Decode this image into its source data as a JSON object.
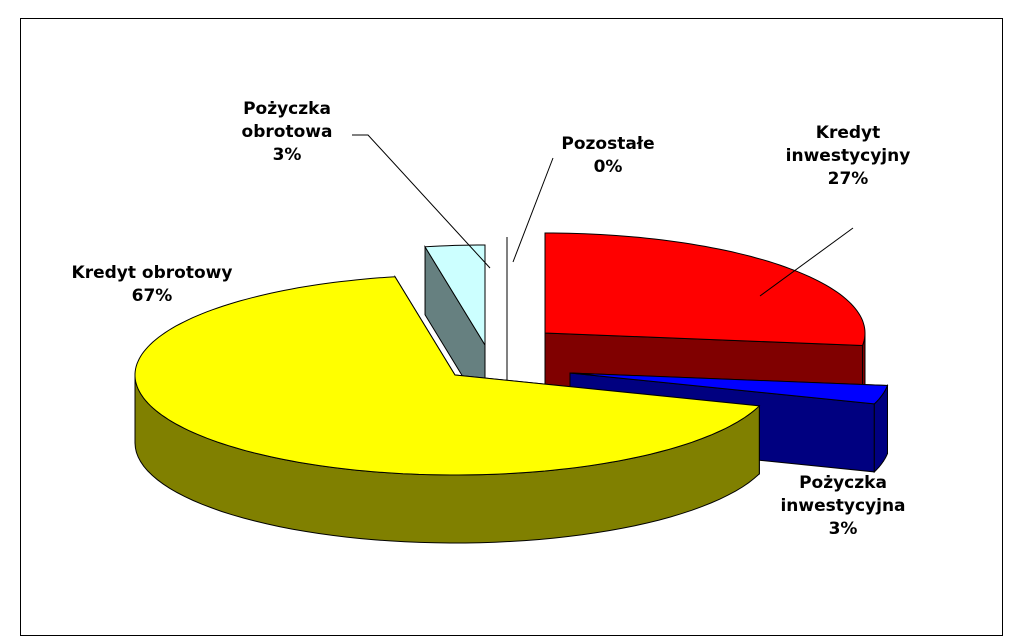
{
  "chart_data": {
    "type": "pie3d",
    "categories": [
      "Kredyt inwestycyjny",
      "Pożyczka inwestycyjna",
      "Kredyt obrotowy",
      "Pożyczka obrotowa",
      "Pozostałe"
    ],
    "values": [
      27,
      3,
      67,
      3,
      0
    ],
    "value_labels": [
      "27%",
      "3%",
      "67%",
      "3%",
      "0%"
    ],
    "colors": [
      "#ff0000",
      "#0000ff",
      "#ffff00",
      "#ccffff",
      "#990099"
    ],
    "side_colors": [
      "#800000",
      "#000080",
      "#808000",
      "#668080",
      "#660066"
    ]
  }
}
